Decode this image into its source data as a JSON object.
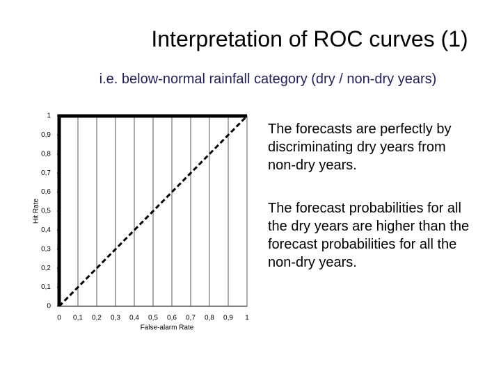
{
  "title": "Interpretation of ROC curves (1)",
  "subtitle": "i.e. below-normal rainfall category (dry / non-dry years)",
  "notes": [
    "The forecasts are perfectly by discriminating dry years from non-dry years.",
    "The  forecast probabilities for all the dry years are higher than the forecast probabilities for all the non-dry years."
  ],
  "chart_data": {
    "type": "line",
    "xlabel": "False-alarm Rate",
    "ylabel": "Hit Rate",
    "xlim": [
      0,
      1
    ],
    "ylim": [
      0,
      1
    ],
    "xticks": [
      0,
      {
        "value": 0.1,
        "label": "0,1"
      },
      {
        "value": 0.2,
        "label": "0,2"
      },
      {
        "value": 0.3,
        "label": "0,3"
      },
      {
        "value": 0.4,
        "label": "0,4"
      },
      {
        "value": 0.5,
        "label": "0,5"
      },
      {
        "value": 0.6,
        "label": "0,6"
      },
      {
        "value": 0.7,
        "label": "0,7"
      },
      {
        "value": 0.8,
        "label": "0,8"
      },
      {
        "value": 0.9,
        "label": "0,9"
      },
      1
    ],
    "yticks": [
      0,
      {
        "value": 0.1,
        "label": "0,1"
      },
      {
        "value": 0.2,
        "label": "0,2"
      },
      {
        "value": 0.3,
        "label": "0,3"
      },
      {
        "value": 0.4,
        "label": "0,4"
      },
      {
        "value": 0.5,
        "label": "0,5"
      },
      {
        "value": 0.6,
        "label": "0,6"
      },
      {
        "value": 0.7,
        "label": "0,7"
      },
      {
        "value": 0.8,
        "label": "0,8"
      },
      {
        "value": 0.9,
        "label": "0,9"
      },
      1
    ],
    "grid": "x",
    "series": [
      {
        "x": [
          0,
          0,
          1
        ],
        "values": [
          0,
          1,
          1
        ],
        "color": "#000000",
        "style": "solid"
      },
      {
        "x": [
          0,
          1
        ],
        "values": [
          0,
          1
        ],
        "color": "#000000",
        "style": "dashed"
      }
    ]
  }
}
